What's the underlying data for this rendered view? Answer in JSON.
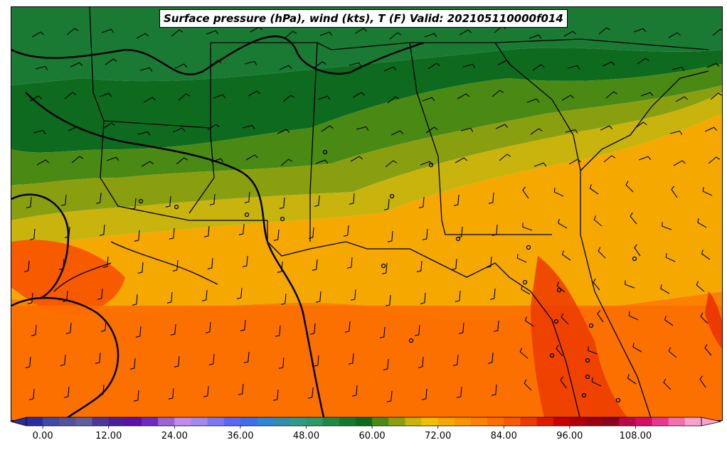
{
  "title": "Surface pressure (hPa), wind (kts), T (F) Valid: 202105110000f014",
  "colorbar": {
    "ticks": [
      "0.00",
      "12.00",
      "24.00",
      "36.00",
      "48.00",
      "60.00",
      "72.00",
      "84.00",
      "96.00",
      "108.00"
    ],
    "tick_values": [
      0,
      12,
      24,
      36,
      48,
      60,
      72,
      84,
      96,
      108
    ],
    "range": [
      -3,
      120
    ],
    "colors": [
      "#2b2d9e",
      "#3d4aa8",
      "#52529a",
      "#5f5f9e",
      "#4b3799",
      "#4a1f9b",
      "#5a12a8",
      "#6e2bc2",
      "#9a63d6",
      "#c08af0",
      "#9f8bf0",
      "#7c78f5",
      "#5a67f5",
      "#3b6ef0",
      "#2e86d6",
      "#2f8fb0",
      "#2f9a8c",
      "#2a9a6a",
      "#1f8a46",
      "#117a32",
      "#0b6b1f",
      "#4a8a14",
      "#8a9f10",
      "#c8b40c",
      "#f0c000",
      "#f5a800",
      "#f89600",
      "#fb8200",
      "#fc6e00",
      "#f85a00",
      "#ec3a00",
      "#dd1a00",
      "#c80000",
      "#b0000a",
      "#9a0010",
      "#8a0020",
      "#b80a48",
      "#d40e6a",
      "#e8388e",
      "#f070b0",
      "#f8a0d0"
    ]
  },
  "legend": {
    "pressure_contours_color": "#000000",
    "state_borders_color": "#000000",
    "wind_barbs_color": "#000000"
  }
}
